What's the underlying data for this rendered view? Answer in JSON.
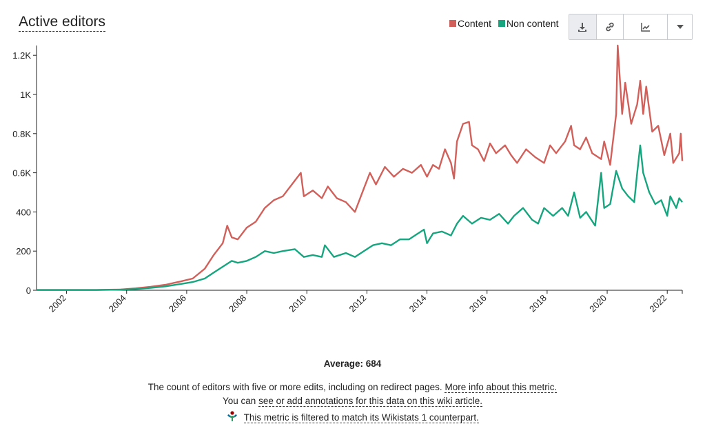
{
  "title": "Active editors",
  "legend": {
    "content": "Content",
    "non_content": "Non content"
  },
  "colors": {
    "content": "#d1605a",
    "non_content": "#16a57e",
    "axis": "#222222"
  },
  "toolbar": {
    "icons": [
      "download-icon",
      "link-icon",
      "chart-line-icon",
      "caret-down-icon"
    ]
  },
  "average_text": "Average: 684",
  "description": "The count of editors with five or more edits, including on redirect pages.",
  "more_info_link": "More info about this metric.",
  "annotation_prefix": "You can",
  "annotation_link": "see or add annotations for this data on this wiki article.",
  "filter_link": "This metric is filtered to match its Wikistats 1 counterpart.",
  "chart_data": {
    "type": "line",
    "y_ticks": [
      "0",
      "200",
      "400",
      "0.6K",
      "0.8K",
      "1K",
      "1.2K"
    ],
    "x_ticks": [
      "2002",
      "2004",
      "2006",
      "2008",
      "2010",
      "2012",
      "2014",
      "2016",
      "2018",
      "2020",
      "2022"
    ],
    "ylim": [
      0,
      1250
    ],
    "xlim": [
      2001.0,
      2022.5
    ],
    "series": [
      {
        "name": "Content",
        "color": "#d1605a",
        "points": [
          [
            2001.0,
            2
          ],
          [
            2003.0,
            2
          ],
          [
            2003.8,
            4
          ],
          [
            2004.3,
            10
          ],
          [
            2004.8,
            18
          ],
          [
            2005.3,
            28
          ],
          [
            2005.8,
            45
          ],
          [
            2006.2,
            60
          ],
          [
            2006.6,
            110
          ],
          [
            2006.9,
            180
          ],
          [
            2007.2,
            240
          ],
          [
            2007.35,
            330
          ],
          [
            2007.5,
            270
          ],
          [
            2007.7,
            260
          ],
          [
            2008.0,
            320
          ],
          [
            2008.3,
            350
          ],
          [
            2008.6,
            420
          ],
          [
            2008.9,
            460
          ],
          [
            2009.2,
            480
          ],
          [
            2009.6,
            560
          ],
          [
            2009.8,
            600
          ],
          [
            2009.9,
            480
          ],
          [
            2010.2,
            510
          ],
          [
            2010.5,
            470
          ],
          [
            2010.7,
            530
          ],
          [
            2011.0,
            470
          ],
          [
            2011.3,
            450
          ],
          [
            2011.6,
            400
          ],
          [
            2011.9,
            520
          ],
          [
            2012.1,
            600
          ],
          [
            2012.3,
            540
          ],
          [
            2012.6,
            630
          ],
          [
            2012.9,
            580
          ],
          [
            2013.2,
            620
          ],
          [
            2013.5,
            600
          ],
          [
            2013.8,
            640
          ],
          [
            2014.0,
            580
          ],
          [
            2014.2,
            640
          ],
          [
            2014.4,
            620
          ],
          [
            2014.6,
            720
          ],
          [
            2014.8,
            650
          ],
          [
            2014.9,
            570
          ],
          [
            2015.0,
            760
          ],
          [
            2015.2,
            850
          ],
          [
            2015.4,
            860
          ],
          [
            2015.5,
            740
          ],
          [
            2015.7,
            720
          ],
          [
            2015.9,
            660
          ],
          [
            2016.1,
            750
          ],
          [
            2016.3,
            700
          ],
          [
            2016.6,
            740
          ],
          [
            2016.8,
            690
          ],
          [
            2017.0,
            650
          ],
          [
            2017.3,
            720
          ],
          [
            2017.6,
            680
          ],
          [
            2017.9,
            650
          ],
          [
            2018.1,
            740
          ],
          [
            2018.3,
            700
          ],
          [
            2018.6,
            760
          ],
          [
            2018.8,
            840
          ],
          [
            2018.9,
            740
          ],
          [
            2019.1,
            720
          ],
          [
            2019.3,
            780
          ],
          [
            2019.5,
            700
          ],
          [
            2019.8,
            670
          ],
          [
            2019.9,
            760
          ],
          [
            2020.1,
            640
          ],
          [
            2020.3,
            900
          ],
          [
            2020.35,
            1250
          ],
          [
            2020.5,
            900
          ],
          [
            2020.6,
            1060
          ],
          [
            2020.8,
            850
          ],
          [
            2021.0,
            950
          ],
          [
            2021.1,
            1070
          ],
          [
            2021.2,
            900
          ],
          [
            2021.3,
            1040
          ],
          [
            2021.5,
            810
          ],
          [
            2021.7,
            840
          ],
          [
            2021.9,
            690
          ],
          [
            2022.1,
            800
          ],
          [
            2022.2,
            650
          ],
          [
            2022.4,
            700
          ],
          [
            2022.45,
            800
          ],
          [
            2022.5,
            660
          ]
        ]
      },
      {
        "name": "Non content",
        "color": "#16a57e",
        "points": [
          [
            2001.0,
            1
          ],
          [
            2003.0,
            1
          ],
          [
            2003.8,
            3
          ],
          [
            2004.3,
            6
          ],
          [
            2004.8,
            12
          ],
          [
            2005.3,
            20
          ],
          [
            2005.8,
            32
          ],
          [
            2006.2,
            42
          ],
          [
            2006.6,
            60
          ],
          [
            2006.9,
            90
          ],
          [
            2007.2,
            120
          ],
          [
            2007.5,
            150
          ],
          [
            2007.7,
            140
          ],
          [
            2008.0,
            150
          ],
          [
            2008.3,
            170
          ],
          [
            2008.6,
            200
          ],
          [
            2008.9,
            190
          ],
          [
            2009.2,
            200
          ],
          [
            2009.6,
            210
          ],
          [
            2009.9,
            170
          ],
          [
            2010.2,
            180
          ],
          [
            2010.5,
            170
          ],
          [
            2010.6,
            230
          ],
          [
            2010.9,
            170
          ],
          [
            2011.3,
            190
          ],
          [
            2011.6,
            170
          ],
          [
            2011.9,
            200
          ],
          [
            2012.2,
            230
          ],
          [
            2012.5,
            240
          ],
          [
            2012.8,
            230
          ],
          [
            2013.1,
            260
          ],
          [
            2013.4,
            260
          ],
          [
            2013.7,
            290
          ],
          [
            2013.9,
            310
          ],
          [
            2014.0,
            240
          ],
          [
            2014.2,
            290
          ],
          [
            2014.5,
            300
          ],
          [
            2014.8,
            280
          ],
          [
            2015.0,
            340
          ],
          [
            2015.2,
            380
          ],
          [
            2015.5,
            340
          ],
          [
            2015.8,
            370
          ],
          [
            2016.1,
            360
          ],
          [
            2016.4,
            390
          ],
          [
            2016.7,
            340
          ],
          [
            2016.9,
            380
          ],
          [
            2017.2,
            420
          ],
          [
            2017.5,
            360
          ],
          [
            2017.7,
            340
          ],
          [
            2017.9,
            420
          ],
          [
            2018.2,
            380
          ],
          [
            2018.5,
            420
          ],
          [
            2018.7,
            380
          ],
          [
            2018.9,
            500
          ],
          [
            2019.1,
            370
          ],
          [
            2019.3,
            400
          ],
          [
            2019.6,
            330
          ],
          [
            2019.8,
            600
          ],
          [
            2019.9,
            420
          ],
          [
            2020.1,
            440
          ],
          [
            2020.3,
            610
          ],
          [
            2020.5,
            520
          ],
          [
            2020.7,
            480
          ],
          [
            2020.9,
            450
          ],
          [
            2021.0,
            600
          ],
          [
            2021.1,
            740
          ],
          [
            2021.2,
            600
          ],
          [
            2021.4,
            500
          ],
          [
            2021.6,
            440
          ],
          [
            2021.8,
            460
          ],
          [
            2022.0,
            380
          ],
          [
            2022.1,
            480
          ],
          [
            2022.3,
            420
          ],
          [
            2022.4,
            470
          ],
          [
            2022.5,
            450
          ]
        ]
      }
    ]
  }
}
